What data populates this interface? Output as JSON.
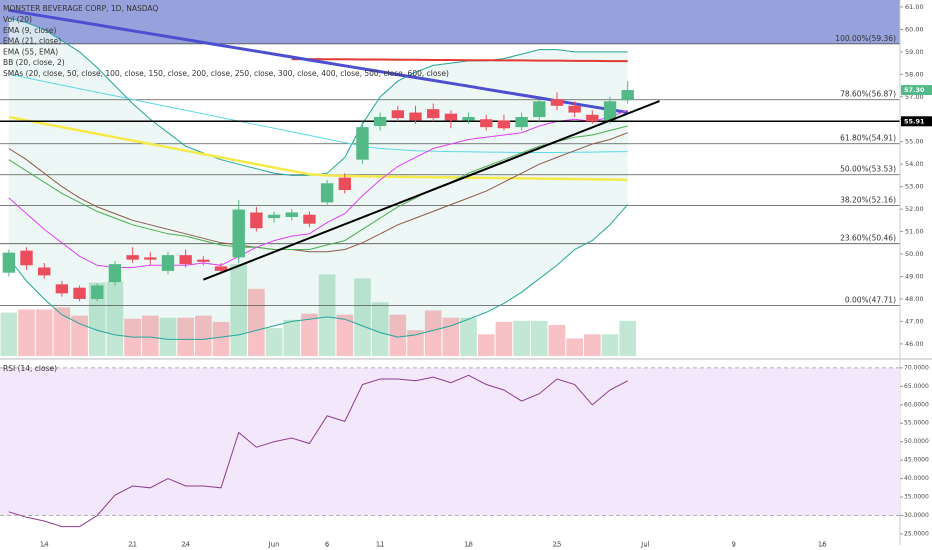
{
  "chart_data": {
    "type": "candlestick",
    "title": "MONSTER BEVERAGE CORP, 1D, NASDAQ",
    "indicator_labels": [
      "Vol (20)",
      "EMA (9, close)",
      "EMA (21, close)",
      "EMA (55, EMA)",
      "BB (20, close, 2)",
      "SMAs (20, close, 50, close, 100, close, 150, close, 200, close, 250, close, 300, close, 400, close, 500, close, 600, close)"
    ],
    "xlim": [
      -0.5,
      50.4
    ],
    "xticks": [
      {
        "value": 2,
        "label": "14"
      },
      {
        "value": 7,
        "label": "21"
      },
      {
        "value": 10,
        "label": "24"
      },
      {
        "value": 15,
        "label": "Jun"
      },
      {
        "value": 18,
        "label": "6"
      },
      {
        "value": 21,
        "label": "11"
      },
      {
        "value": 26,
        "label": "18"
      },
      {
        "value": 31,
        "label": "25"
      },
      {
        "value": 36,
        "label": "Jul"
      },
      {
        "value": 41,
        "label": "9"
      },
      {
        "value": 46,
        "label": "16"
      }
    ],
    "ylim": [
      45.46,
      61.31
    ],
    "yticks": [
      {
        "value": 46,
        "label": "46.00"
      },
      {
        "value": 47,
        "label": "47.00"
      },
      {
        "value": 48,
        "label": "48.00"
      },
      {
        "value": 49,
        "label": "49.00"
      },
      {
        "value": 50,
        "label": "50.00"
      },
      {
        "value": 51,
        "label": "51.00"
      },
      {
        "value": 52,
        "label": "52.00"
      },
      {
        "value": 53,
        "label": "53.00"
      },
      {
        "value": 54,
        "label": "54.00"
      },
      {
        "value": 55,
        "label": "55.00"
      },
      {
        "value": 56,
        "label": "56.00"
      },
      {
        "value": 57,
        "label": "57.00"
      },
      {
        "value": 58,
        "label": "58.00"
      },
      {
        "value": 59,
        "label": "59.00"
      },
      {
        "value": 60,
        "label": "60.00"
      },
      {
        "value": 61,
        "label": "61.00"
      }
    ],
    "up_color": "#53b987",
    "down_color": "#eb4d5c",
    "open": [
      49.17,
      50.15,
      49.4,
      48.65,
      48.5,
      48.0,
      48.75,
      49.95,
      49.85,
      49.25,
      49.95,
      49.75,
      49.45,
      49.85,
      51.85,
      51.6,
      51.65,
      51.75,
      52.3,
      53.4,
      54.2,
      55.7,
      56.4,
      56.3,
      56.45,
      56.25,
      55.95,
      56.0,
      55.95,
      55.65,
      56.1,
      56.9,
      56.6,
      56.2,
      55.95,
      56.85
    ],
    "high": [
      50.2,
      50.3,
      49.6,
      48.8,
      48.6,
      48.7,
      49.7,
      50.3,
      50.1,
      50.1,
      50.2,
      49.9,
      49.6,
      52.4,
      52.1,
      51.9,
      52.0,
      51.9,
      53.3,
      53.6,
      55.9,
      56.3,
      56.6,
      56.6,
      56.7,
      56.4,
      56.3,
      56.2,
      56.2,
      56.3,
      56.9,
      57.2,
      56.8,
      56.4,
      57.0,
      57.7
    ],
    "low": [
      49.0,
      49.3,
      48.9,
      48.1,
      47.9,
      47.9,
      48.6,
      49.6,
      49.5,
      49.1,
      49.4,
      49.5,
      49.1,
      49.6,
      51.0,
      51.4,
      51.5,
      51.2,
      52.2,
      52.7,
      54.0,
      55.5,
      55.9,
      55.8,
      55.9,
      55.6,
      55.8,
      55.5,
      55.5,
      55.5,
      55.9,
      56.4,
      56.1,
      55.8,
      55.8,
      56.7
    ],
    "close": [
      50.06,
      49.5,
      49.05,
      48.25,
      48.0,
      48.6,
      49.55,
      49.75,
      49.75,
      49.95,
      49.55,
      49.65,
      49.25,
      51.98,
      51.15,
      51.75,
      51.85,
      51.35,
      53.15,
      52.85,
      55.65,
      56.1,
      56.05,
      55.95,
      56.05,
      55.95,
      56.1,
      55.65,
      55.6,
      56.1,
      56.8,
      56.6,
      56.3,
      55.9,
      56.8,
      57.3
    ],
    "volume": [
      4.2,
      4.5,
      4.5,
      4.7,
      3.9,
      7.1,
      7.2,
      3.6,
      3.9,
      3.7,
      3.7,
      3.9,
      3.3,
      8.9,
      6.5,
      2.7,
      3.5,
      4.1,
      7.9,
      4.0,
      7.5,
      5.2,
      4.0,
      2.5,
      4.4,
      3.7,
      3.7,
      2.1,
      3.3,
      3.4,
      3.4,
      3.0,
      1.7,
      2.1,
      2.1,
      3.4
    ],
    "bands": {
      "color": "#26a69a",
      "fill": "#e8f5f3",
      "upper": [
        60.5,
        60.3,
        60.0,
        59.5,
        59.0,
        58.3,
        57.5,
        56.7,
        56.0,
        55.4,
        54.8,
        54.5,
        54.2,
        54.0,
        53.8,
        53.6,
        53.5,
        53.5,
        53.6,
        54.3,
        55.8,
        57.0,
        57.7,
        58.1,
        58.4,
        58.5,
        58.6,
        58.6,
        58.7,
        58.9,
        59.1,
        59.1,
        59.0,
        59.0,
        59.0,
        59.0
      ],
      "lower": [
        49.8,
        48.8,
        48.0,
        47.3,
        46.9,
        46.6,
        46.4,
        46.3,
        46.3,
        46.2,
        46.2,
        46.2,
        46.3,
        46.4,
        46.6,
        46.8,
        47.0,
        47.1,
        47.2,
        47.1,
        46.8,
        46.5,
        46.3,
        46.4,
        46.6,
        46.8,
        47.1,
        47.4,
        47.8,
        48.3,
        48.9,
        49.5,
        50.2,
        50.6,
        51.3,
        52.2
      ]
    },
    "overlays": [
      {
        "color": "#f6e94a",
        "width": 2.5,
        "values": [
          56.1,
          55.95,
          55.8,
          55.65,
          55.5,
          55.35,
          55.2,
          55.05,
          54.9,
          54.75,
          54.6,
          54.45,
          54.3,
          54.15,
          54.0,
          53.85,
          53.7,
          53.55,
          53.5,
          53.48,
          53.46,
          53.45,
          53.44,
          53.43,
          53.42,
          53.41,
          53.4,
          53.39,
          53.38,
          53.37,
          53.36,
          53.35,
          53.34,
          53.33,
          53.32,
          53.3
        ]
      },
      {
        "color": "#5fd9e6",
        "width": 1,
        "values": [
          58.0,
          57.84,
          57.68,
          57.52,
          57.36,
          57.2,
          57.04,
          56.88,
          56.72,
          56.56,
          56.4,
          56.24,
          56.08,
          55.92,
          55.76,
          55.6,
          55.44,
          55.28,
          55.12,
          54.96,
          54.8,
          54.7,
          54.65,
          54.6,
          54.58,
          54.56,
          54.55,
          54.54,
          54.53,
          54.52,
          54.52,
          54.52,
          54.53,
          54.54,
          54.55,
          54.56
        ]
      },
      {
        "color": "#e53935",
        "width": 2,
        "values": [
          null,
          null,
          null,
          null,
          null,
          null,
          null,
          null,
          null,
          null,
          null,
          null,
          null,
          null,
          null,
          null,
          58.68,
          58.68,
          58.67,
          58.67,
          58.66,
          58.66,
          58.65,
          58.65,
          58.64,
          58.64,
          58.63,
          58.63,
          58.62,
          58.62,
          58.61,
          58.61,
          58.6,
          58.6,
          58.59,
          58.59
        ]
      },
      {
        "color": "#4b4fd0",
        "width": 3,
        "values": [
          60.85,
          60.72,
          60.59,
          60.46,
          60.33,
          60.2,
          60.07,
          59.94,
          59.81,
          59.68,
          59.55,
          59.42,
          59.29,
          59.16,
          59.03,
          58.9,
          58.77,
          58.64,
          58.51,
          58.38,
          58.25,
          58.12,
          57.99,
          57.86,
          57.73,
          57.6,
          57.47,
          57.34,
          57.21,
          57.08,
          56.95,
          56.82,
          56.69,
          56.56,
          56.43,
          56.3
        ]
      },
      {
        "color": "#8d5a4a",
        "width": 1,
        "values": [
          54.7,
          54.2,
          53.6,
          53.0,
          52.5,
          52.1,
          51.8,
          51.5,
          51.3,
          51.1,
          50.9,
          50.7,
          50.5,
          50.4,
          50.3,
          50.2,
          50.2,
          50.1,
          50.1,
          50.2,
          50.5,
          50.9,
          51.3,
          51.6,
          51.9,
          52.2,
          52.5,
          52.8,
          53.2,
          53.6,
          54.0,
          54.3,
          54.6,
          54.9,
          55.1,
          55.4
        ]
      },
      {
        "color": "#4caf50",
        "width": 1,
        "values": [
          54.2,
          53.7,
          53.2,
          52.7,
          52.3,
          51.9,
          51.6,
          51.3,
          51.1,
          50.9,
          50.8,
          50.6,
          50.4,
          50.3,
          50.3,
          50.2,
          50.2,
          50.2,
          50.4,
          50.6,
          51.1,
          51.6,
          52.1,
          52.5,
          52.9,
          53.2,
          53.6,
          53.9,
          54.2,
          54.5,
          54.8,
          55.0,
          55.2,
          55.3,
          55.5,
          55.7
        ]
      },
      {
        "color": "#e040fb",
        "width": 1,
        "values": [
          52.5,
          51.8,
          51.1,
          50.5,
          49.9,
          49.5,
          49.4,
          49.4,
          49.5,
          49.5,
          49.5,
          49.6,
          49.5,
          49.9,
          50.3,
          50.6,
          50.8,
          50.9,
          51.4,
          51.8,
          52.6,
          53.3,
          53.9,
          54.3,
          54.7,
          54.9,
          55.1,
          55.2,
          55.3,
          55.4,
          55.7,
          55.9,
          56.0,
          55.9,
          56.1,
          56.4
        ]
      }
    ],
    "fib_fill": "#8592d6",
    "fib_levels": [
      {
        "value": 59.36,
        "label": "100.00%(59.36)"
      },
      {
        "value": 56.87,
        "label": "78.60%(56.87)"
      },
      {
        "value": 54.91,
        "label": "61.80%(54.91)"
      },
      {
        "value": 53.53,
        "label": "50.00%(53.53)"
      },
      {
        "value": 52.16,
        "label": "38.20%(52.16)"
      },
      {
        "value": 50.46,
        "label": "23.60%(50.46)"
      },
      {
        "value": 47.71,
        "label": "0.00%(47.71)"
      }
    ],
    "horizontal_line": {
      "value": 55.91,
      "label": "55.91"
    },
    "last_price": {
      "value": 57.3,
      "label": "57.30"
    },
    "trendline": {
      "x": [
        11,
        36.8
      ],
      "y": [
        48.86,
        56.81
      ]
    },
    "rsi": {
      "title": "RSI (14, close)",
      "color": "#8e3d8f",
      "band_fill": "#f3e7fb",
      "bands": [
        30,
        70
      ],
      "ylim": [
        22.0,
        71.6
      ],
      "yticks": [
        {
          "value": 25,
          "label": "25.0000"
        },
        {
          "value": 30,
          "label": "30.0000"
        },
        {
          "value": 35,
          "label": "35.0000"
        },
        {
          "value": 40,
          "label": "40.0000"
        },
        {
          "value": 45,
          "label": "45.0000"
        },
        {
          "value": 50,
          "label": "50.0000"
        },
        {
          "value": 55,
          "label": "55.0000"
        },
        {
          "value": 60,
          "label": "60.0000"
        },
        {
          "value": 65,
          "label": "65.0000"
        },
        {
          "value": 70,
          "label": "70.0000"
        }
      ],
      "values": [
        31.0,
        29.5,
        28.5,
        27.0,
        27.0,
        30.0,
        35.5,
        38.0,
        37.5,
        40.0,
        38.0,
        38.0,
        37.5,
        52.5,
        48.5,
        50.0,
        51.0,
        49.5,
        57.0,
        55.5,
        65.5,
        67.0,
        67.0,
        66.5,
        67.5,
        66.0,
        68.0,
        65.5,
        64.0,
        61.0,
        63.0,
        67.0,
        65.5,
        60.0,
        64.0,
        66.5
      ]
    }
  }
}
